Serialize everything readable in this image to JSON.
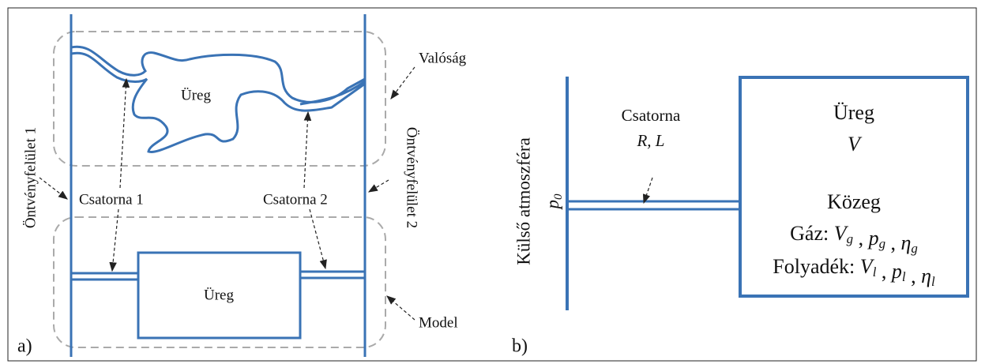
{
  "panel_a": {
    "label": "a)",
    "left_surface": "Öntvényfelület 1",
    "right_surface": "Öntvényfelület 2",
    "reality_cavity": "Üreg",
    "reality": "Valóság",
    "channel_1": "Csatorna 1",
    "channel_2": "Csatorna 2",
    "model_cavity": "Üreg",
    "model": "Model"
  },
  "panel_b": {
    "label": "b)",
    "atmosphere": "Külső atmoszféra",
    "pressure": [
      {
        "text": "p",
        "sub": "0"
      }
    ],
    "channel": "Csatorna",
    "channel_params": "R, L",
    "cavity": "Üreg",
    "volume": "V",
    "medium": "Közeg",
    "gas": [
      {
        "text": "Gáz: "
      },
      {
        "text": "V",
        "sub": "g"
      },
      {
        "text": " , "
      },
      {
        "text": "p",
        "sub": "g"
      },
      {
        "text": " , "
      },
      {
        "text": "η",
        "sub": "g"
      }
    ],
    "liquid": [
      {
        "text": "Folyadék: "
      },
      {
        "text": "V",
        "sub": "l"
      },
      {
        "text": " , "
      },
      {
        "text": "p",
        "sub": "l"
      },
      {
        "text": " , "
      },
      {
        "text": "η",
        "sub": "l"
      }
    ]
  }
}
